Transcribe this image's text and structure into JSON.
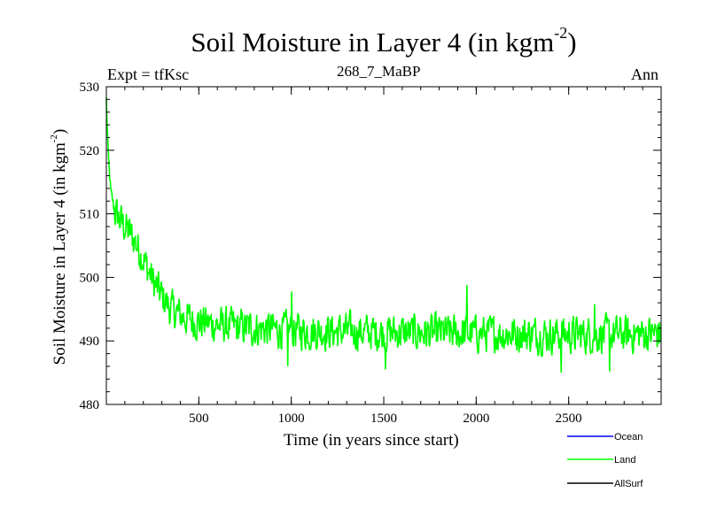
{
  "header": {
    "title": "Soil Moisture in Layer 4 (in kgm",
    "title_sup": "-2",
    "title_close": ")",
    "experiment": "Expt = tfKsc",
    "subtitle": "268_7_MaBP",
    "season": "Ann"
  },
  "chart_data": {
    "type": "line",
    "title": "Soil Moisture in Layer 4 (in kgm-2)",
    "xlabel": "Time (in years since start)",
    "ylabel": "Soil Moisture in Layer 4 (in kgm-2)",
    "xlim": [
      0,
      3000
    ],
    "ylim": [
      480,
      530
    ],
    "x_ticks": [
      500,
      1000,
      1500,
      2000,
      2500
    ],
    "y_ticks": [
      480,
      490,
      500,
      510,
      520,
      530
    ],
    "legend": [
      {
        "name": "Ocean",
        "color": "#0000ff"
      },
      {
        "name": "Land",
        "color": "#00ff00"
      },
      {
        "name": "AllSurf",
        "color": "#000000"
      }
    ],
    "series": [
      {
        "name": "Land",
        "color": "#00ff00",
        "x": [
          0,
          10,
          25,
          50,
          75,
          100,
          150,
          200,
          250,
          300,
          350,
          400,
          500,
          600,
          700,
          800,
          900,
          1000,
          1200,
          1400,
          1600,
          1800,
          2000,
          2200,
          2400,
          2600,
          2800,
          3000
        ],
        "values": [
          528,
          519,
          513,
          510,
          509,
          508,
          506,
          503,
          499.5,
          497,
          495,
          494,
          493,
          492.5,
          492.2,
          492,
          491.8,
          491.6,
          491.5,
          491.4,
          491.3,
          491.2,
          491.2,
          491.1,
          491.0,
          491.0,
          491.0,
          491.2
        ],
        "noise_amplitude": 2.6,
        "notable_peaks": [
          [
            1003,
            497.8
          ],
          [
            1950,
            498.8
          ],
          [
            2640,
            495.8
          ]
        ],
        "notable_troughs": [
          [
            980,
            486
          ],
          [
            1510,
            485.5
          ],
          [
            2460,
            485
          ],
          [
            2720,
            485.2
          ]
        ]
      },
      {
        "name": "Ocean",
        "color": "#0000ff",
        "x": [],
        "values": []
      },
      {
        "name": "AllSurf",
        "color": "#000000",
        "x": [],
        "values": []
      }
    ]
  }
}
